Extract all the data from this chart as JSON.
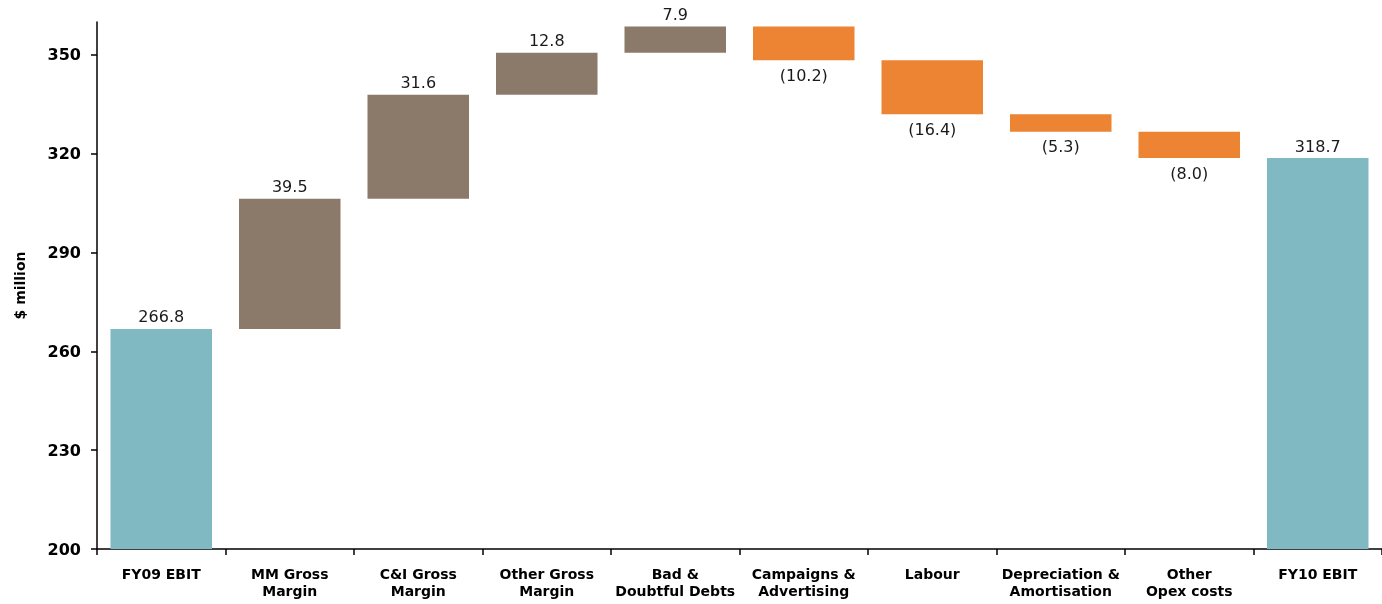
{
  "chart_data": {
    "type": "bar",
    "categories": [
      "FY09 EBIT",
      "MM Gross Margin",
      "C&I Gross Margin",
      "Other Gross Margin",
      "Bad & Doubtful Debts",
      "Campaigns & Advertising",
      "Labour",
      "Depreciation & Amortisation",
      "Other Opex costs",
      "FY10 EBIT"
    ],
    "values": [
      266.8,
      39.5,
      31.6,
      12.8,
      7.9,
      -10.2,
      -16.4,
      -5.3,
      -8.0,
      318.7
    ],
    "base": [
      null,
      266.8,
      306.3,
      337.9,
      350.7,
      358.6,
      348.4,
      332.0,
      326.7,
      null
    ],
    "colors": [
      "#80b9c1",
      "#8b7969",
      "#8b7969",
      "#8b7969",
      "#8b7969",
      "#ec8433",
      "#ec8433",
      "#ec8433",
      "#ec8433",
      "#80b9c1"
    ],
    "value_labels": [
      "266.8",
      "39.5",
      "31.6",
      "12.8",
      "7.9",
      "(10.2)",
      "(16.4)",
      "(5.3)",
      "(8.0)",
      "318.7"
    ],
    "ylabel": "$ million",
    "ylim": [
      200,
      360
    ],
    "yticks": [
      200,
      230,
      260,
      290,
      320,
      350
    ]
  }
}
